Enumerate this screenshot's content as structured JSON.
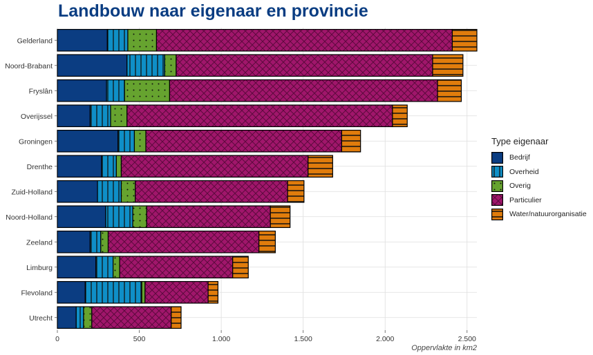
{
  "chart_data": {
    "type": "bar",
    "orientation": "horizontal",
    "stacked": true,
    "title": "Landbouw naar eigenaar en provincie",
    "xlabel": "Oppervlakte in km2",
    "ylabel": "",
    "xlim": [
      0,
      2560
    ],
    "xticks": [
      0,
      500,
      1000,
      1500,
      2000,
      2500
    ],
    "xtick_labels": [
      "0",
      "500",
      "1.000",
      "1.500",
      "2.000",
      "2.500"
    ],
    "grid": true,
    "legend": {
      "title": "Type eigenaar",
      "position": "right"
    },
    "categories": [
      "Gelderland",
      "Noord-Brabant",
      "Fryslân",
      "Overijssel",
      "Groningen",
      "Drenthe",
      "Zuid-Holland",
      "Noord-Holland",
      "Zeeland",
      "Limburg",
      "Flevoland",
      "Utrecht"
    ],
    "series": [
      {
        "name": "Bedrijf",
        "color": "#0b3d82",
        "pattern": "solid",
        "values": [
          305,
          425,
          300,
          200,
          370,
          270,
          245,
          295,
          200,
          235,
          170,
          115
        ]
      },
      {
        "name": "Overheid",
        "color": "#0f8fc7",
        "pattern": "vertical-lines",
        "values": [
          125,
          230,
          110,
          125,
          100,
          90,
          145,
          165,
          65,
          105,
          345,
          45
        ]
      },
      {
        "name": "Overig",
        "color": "#66a32f",
        "pattern": "dots",
        "values": [
          175,
          70,
          275,
          100,
          70,
          30,
          85,
          85,
          45,
          40,
          20,
          50
        ]
      },
      {
        "name": "Particulier",
        "color": "#a0166b",
        "pattern": "crosshatch",
        "values": [
          1805,
          1565,
          1635,
          1620,
          1195,
          1140,
          930,
          755,
          920,
          690,
          385,
          485
        ]
      },
      {
        "name": "Water/natuurorganisatie",
        "color": "#e07c0c",
        "pattern": "horizontal-lines",
        "values": [
          150,
          185,
          145,
          90,
          115,
          150,
          100,
          120,
          100,
          95,
          60,
          60
        ]
      }
    ]
  }
}
